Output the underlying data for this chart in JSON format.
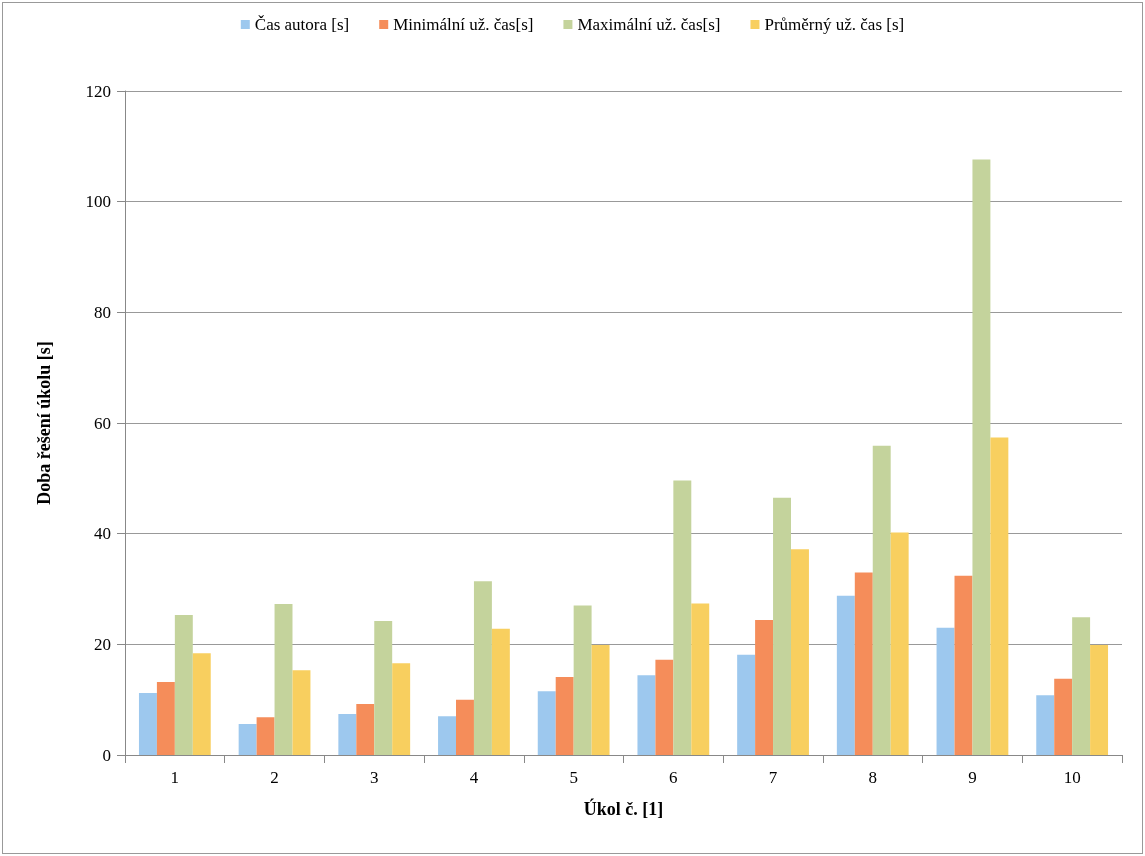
{
  "chart_data": {
    "type": "bar",
    "xlabel": "Úkol č. [1]",
    "ylabel": "Doba řešení úkolu [s]",
    "categories": [
      "1",
      "2",
      "3",
      "4",
      "5",
      "6",
      "7",
      "8",
      "9",
      "10"
    ],
    "series": [
      {
        "name": "Čas autora [s]",
        "color": "#9dc8ee",
        "values": [
          11.2,
          5.6,
          7.4,
          7.0,
          11.5,
          14.4,
          18.1,
          28.8,
          23.0,
          10.8
        ]
      },
      {
        "name": "Minimální už. čas[s]",
        "color": "#f58d5a",
        "values": [
          13.2,
          6.8,
          9.2,
          10.0,
          14.1,
          17.2,
          24.4,
          33.0,
          32.4,
          13.8
        ]
      },
      {
        "name": "Maximální už. čas[s]",
        "color": "#c4d39c",
        "values": [
          25.3,
          27.3,
          24.2,
          31.4,
          27.0,
          49.6,
          46.5,
          55.9,
          107.6,
          24.9
        ]
      },
      {
        "name": "Průměrný už. čas [s]",
        "color": "#f8cf5f",
        "values": [
          18.4,
          15.3,
          16.6,
          22.8,
          19.9,
          27.4,
          37.2,
          40.2,
          57.4,
          19.9
        ]
      }
    ],
    "ylim": [
      0,
      120
    ],
    "yticks": [
      0,
      20,
      40,
      60,
      80,
      100,
      120
    ],
    "grid": "y",
    "legend": "top"
  }
}
